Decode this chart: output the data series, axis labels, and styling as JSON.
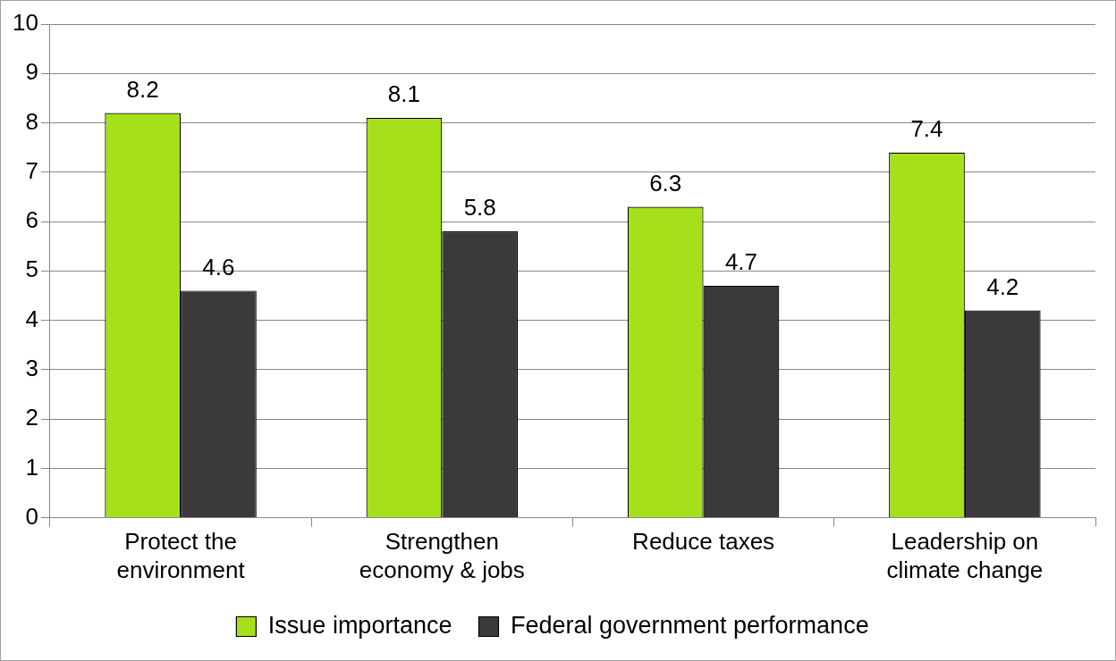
{
  "chart_data": {
    "type": "bar",
    "categories": [
      "Protect the environment",
      "Strengthen economy & jobs",
      "Reduce taxes",
      "Leadership on climate change"
    ],
    "series": [
      {
        "name": "Issue importance",
        "color": "#a6e01a",
        "values": [
          8.2,
          8.1,
          6.3,
          7.4
        ]
      },
      {
        "name": "Federal government performance",
        "color": "#3a3a3a",
        "values": [
          4.6,
          5.8,
          4.7,
          4.2
        ]
      }
    ],
    "ylim": [
      0,
      10
    ],
    "yticks": [
      0,
      1,
      2,
      3,
      4,
      5,
      6,
      7,
      8,
      9,
      10
    ],
    "grid": "y",
    "legend": "bottom",
    "data_labels": true
  }
}
